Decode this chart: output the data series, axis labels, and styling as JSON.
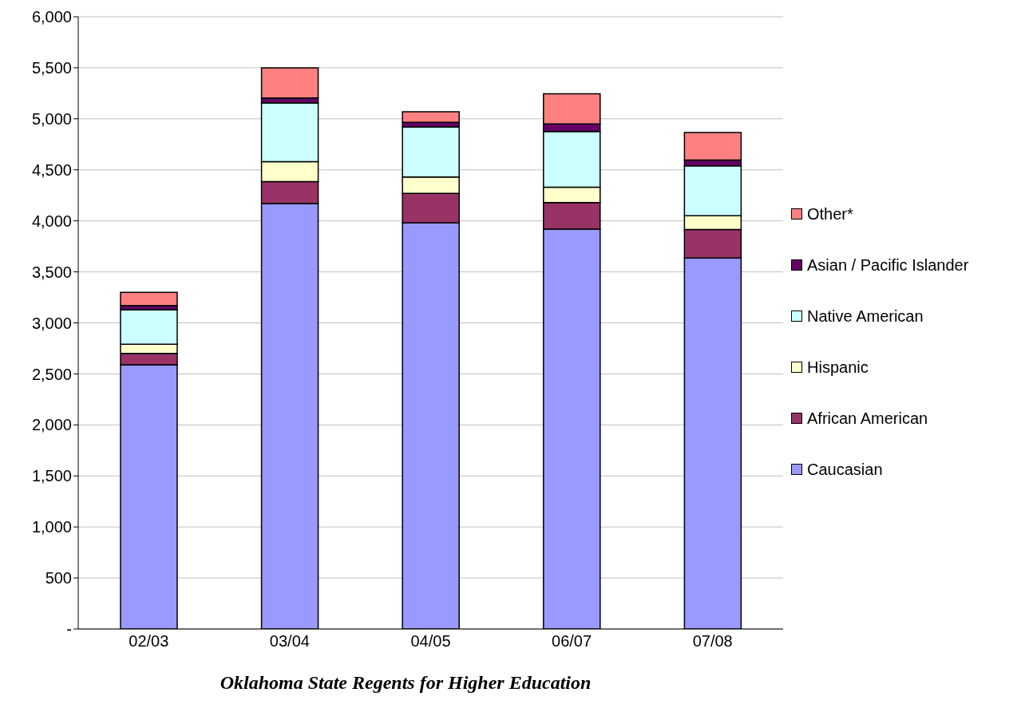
{
  "chart_data": {
    "type": "bar",
    "stacked": true,
    "xlabel": "Oklahoma State Regents for Higher Education",
    "categories": [
      "02/03",
      "03/04",
      "04/05",
      "06/07",
      "07/08"
    ],
    "series": [
      {
        "name": "Caucasian",
        "color": "#9999ff",
        "values": [
          2590,
          4170,
          3980,
          3920,
          3635
        ]
      },
      {
        "name": "African American",
        "color": "#993366",
        "values": [
          110,
          215,
          290,
          260,
          280
        ]
      },
      {
        "name": "Hispanic",
        "color": "#ffffcc",
        "values": [
          90,
          195,
          160,
          150,
          135
        ]
      },
      {
        "name": "Native American",
        "color": "#ccffff",
        "values": [
          340,
          575,
          490,
          545,
          490
        ]
      },
      {
        "name": "Asian / Pacific Islander",
        "color": "#660066",
        "values": [
          40,
          50,
          45,
          75,
          55
        ]
      },
      {
        "name": "Other*",
        "color": "#ff8080",
        "values": [
          130,
          295,
          105,
          295,
          270
        ]
      }
    ],
    "ylim": [
      0,
      6000
    ],
    "yticks": [
      {
        "value": 0,
        "label": "-"
      },
      {
        "value": 500,
        "label": "500"
      },
      {
        "value": 1000,
        "label": "1,000"
      },
      {
        "value": 1500,
        "label": "1,500"
      },
      {
        "value": 2000,
        "label": "2,000"
      },
      {
        "value": 2500,
        "label": "2,500"
      },
      {
        "value": 3000,
        "label": "3,000"
      },
      {
        "value": 3500,
        "label": "3,500"
      },
      {
        "value": 4000,
        "label": "4,000"
      },
      {
        "value": 4500,
        "label": "4,500"
      },
      {
        "value": 5000,
        "label": "5,000"
      },
      {
        "value": 5500,
        "label": "5,500"
      },
      {
        "value": 6000,
        "label": "6,000"
      }
    ],
    "grid": "y",
    "legend": "right"
  }
}
